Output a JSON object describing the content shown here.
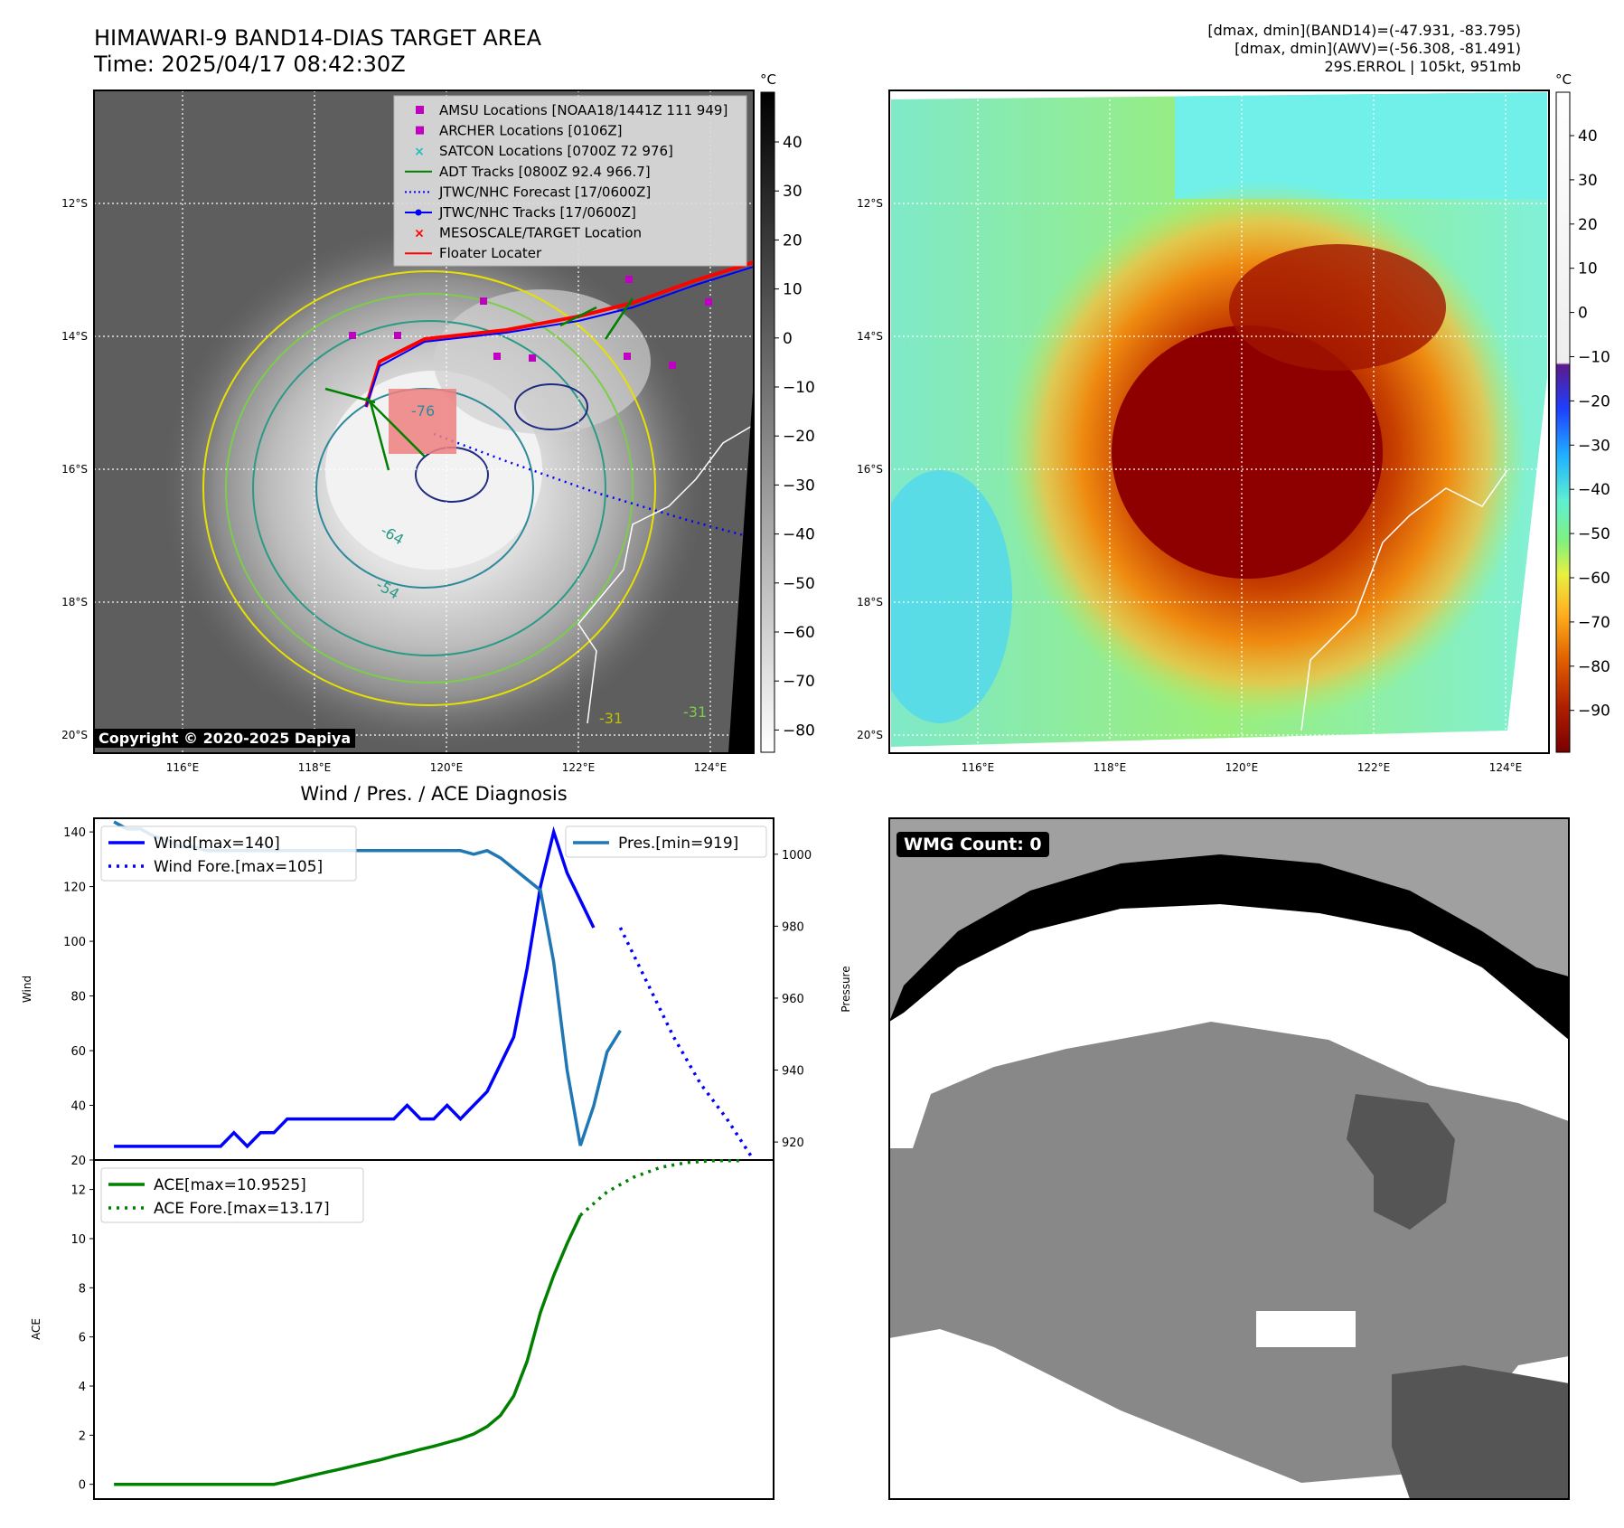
{
  "header": {
    "title_line1": "HIMAWARI-9 BAND14-DIAS TARGET AREA",
    "title_line2": "Time: 2025/04/17 08:42:30Z",
    "right_line1": "[dmax, dmin](BAND14)=(-47.931, -83.795)",
    "right_line2": "[dmax, dmin](AWV)=(-56.308, -81.491)",
    "right_line3": "29S.ERROL | 105kt, 951mb",
    "copyright": "Copyright © 2020-2025 Dapiya"
  },
  "map": {
    "lat_labels": [
      "12°S",
      "14°S",
      "16°S",
      "18°S",
      "20°S"
    ],
    "lon_labels": [
      "116°E",
      "118°E",
      "120°E",
      "122°E",
      "124°E"
    ],
    "unit": "°C",
    "colorbar_left_ticks": [
      "40",
      "30",
      "20",
      "10",
      "0",
      "−10",
      "−20",
      "−30",
      "−40",
      "−50",
      "−60",
      "−70",
      "−80"
    ],
    "colorbar_right_ticks": [
      "40",
      "30",
      "20",
      "10",
      "0",
      "−10",
      "−20",
      "−30",
      "−40",
      "−50",
      "−60",
      "−70",
      "−80",
      "−90"
    ],
    "contour_labels": [
      "-64",
      "-54",
      "-31",
      "-31",
      "-76"
    ],
    "legend": [
      {
        "label": "AMSU Locations [NOAA18/1441Z 111 949]",
        "color": "#c000c0",
        "marker": "square"
      },
      {
        "label": "ARCHER Locations [0106Z]",
        "color": "#c000c0",
        "marker": "square"
      },
      {
        "label": "SATCON Locations [0700Z 72 976]",
        "color": "#20c0c0",
        "marker": "x"
      },
      {
        "label": "ADT Tracks [0800Z 92.4 966.7]",
        "color": "#008000",
        "marker": "line"
      },
      {
        "label": "JTWC/NHC Forecast [17/0600Z]",
        "color": "#0000ff",
        "marker": "dotted"
      },
      {
        "label": "JTWC/NHC Tracks [17/0600Z]",
        "color": "#0000ff",
        "marker": "line-dot"
      },
      {
        "label": "MESOSCALE/TARGET Location",
        "color": "#ff0000",
        "marker": "x"
      },
      {
        "label": "Floater Locater",
        "color": "#ff0000",
        "marker": "line"
      }
    ]
  },
  "wmg": {
    "label": "WMG Count: 0"
  },
  "chart_data": [
    {
      "type": "line",
      "title": "Wind / Pres. / ACE Diagnosis",
      "ylabel": "Wind",
      "y2label": "Pressure",
      "ylim": [
        20,
        145
      ],
      "y2lim": [
        915,
        1010
      ],
      "yticks": [
        20,
        40,
        60,
        80,
        100,
        120,
        140
      ],
      "y2ticks": [
        920,
        940,
        960,
        980,
        1000
      ],
      "series": [
        {
          "name": "Wind[max=140]",
          "color": "#0000ff",
          "style": "solid",
          "x": [
            0,
            1,
            2,
            3,
            4,
            5,
            6,
            7,
            8,
            9,
            10,
            11,
            12,
            13,
            14,
            15,
            16,
            17,
            18,
            19,
            20,
            21,
            22,
            23,
            24,
            25,
            26,
            27,
            28,
            29,
            30,
            31,
            32,
            33,
            34,
            35,
            36,
            37,
            38
          ],
          "values": [
            25,
            25,
            25,
            25,
            25,
            25,
            25,
            25,
            25,
            30,
            25,
            30,
            30,
            35,
            35,
            35,
            35,
            35,
            35,
            35,
            35,
            35,
            40,
            35,
            35,
            40,
            35,
            40,
            45,
            55,
            65,
            90,
            120,
            140,
            125,
            115,
            105,
            null,
            null
          ]
        },
        {
          "name": "Wind Fore.[max=105]",
          "color": "#0000ff",
          "style": "dotted",
          "x": [
            38,
            40,
            42,
            44,
            46,
            48
          ],
          "values": [
            105,
            85,
            65,
            48,
            35,
            20
          ]
        },
        {
          "name": "Pres.[min=919]",
          "color": "#1f77b4",
          "style": "solid",
          "x": [
            0,
            1,
            2,
            3,
            4,
            5,
            6,
            7,
            8,
            9,
            10,
            11,
            12,
            13,
            14,
            15,
            16,
            17,
            18,
            19,
            20,
            21,
            22,
            23,
            24,
            25,
            26,
            27,
            28,
            29,
            30,
            31,
            32,
            33,
            34,
            35,
            36,
            37,
            38
          ],
          "values": [
            1009,
            1007,
            1007,
            1005,
            1004,
            1002,
            1002,
            1001,
            1001,
            1001,
            1001,
            1001,
            1001,
            1001,
            1001,
            1001,
            1001,
            1001,
            1001,
            1001,
            1001,
            1001,
            1001,
            1001,
            1001,
            1001,
            1001,
            1000,
            1001,
            999,
            996,
            993,
            990,
            970,
            940,
            919,
            930,
            945,
            951
          ]
        }
      ]
    },
    {
      "type": "line",
      "ylabel": "ACE",
      "ylim": [
        -0.6,
        13.2
      ],
      "yticks": [
        0,
        2,
        4,
        6,
        8,
        10,
        12
      ],
      "series": [
        {
          "name": "ACE[max=10.9525]",
          "color": "#008000",
          "style": "solid",
          "x": [
            0,
            1,
            2,
            3,
            4,
            5,
            6,
            7,
            8,
            9,
            10,
            11,
            12,
            13,
            14,
            15,
            16,
            17,
            18,
            19,
            20,
            21,
            22,
            23,
            24,
            25,
            26,
            27,
            28,
            29,
            30,
            31,
            32,
            33,
            34,
            35,
            36,
            37,
            38
          ],
          "values": [
            0,
            0,
            0,
            0,
            0,
            0,
            0,
            0,
            0,
            0,
            0,
            0,
            0,
            0.12,
            0.25,
            0.38,
            0.5,
            0.62,
            0.75,
            0.88,
            1.0,
            1.15,
            1.28,
            1.42,
            1.55,
            1.7,
            1.85,
            2.05,
            2.35,
            2.8,
            3.6,
            5.0,
            7.0,
            8.5,
            9.8,
            10.95,
            null,
            null,
            null
          ]
        },
        {
          "name": "ACE Fore.[max=13.17]",
          "color": "#008000",
          "style": "dotted",
          "x": [
            35,
            37,
            39,
            41,
            43,
            45,
            47
          ],
          "values": [
            10.95,
            11.9,
            12.5,
            12.9,
            13.1,
            13.17,
            13.17
          ]
        }
      ]
    }
  ]
}
